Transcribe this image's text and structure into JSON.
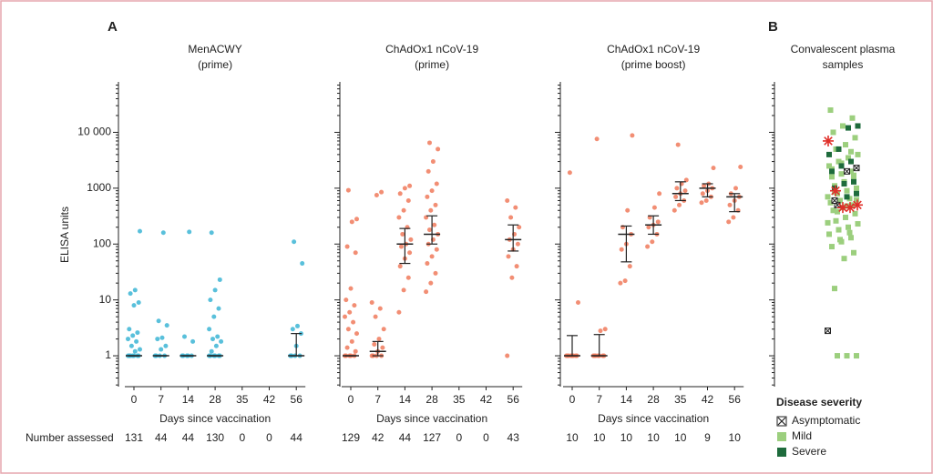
{
  "panel_labels": [
    "A",
    "B"
  ],
  "number_assessed_label": "Number assessed",
  "chart_data": [
    {
      "type": "strip",
      "title": "MenACWY",
      "subtitle": "(prime)",
      "ylabel": "ELISA units",
      "xlabel": "Days since vaccination",
      "log_scale": true,
      "ylim": [
        0.28,
        80000
      ],
      "show_tick_labels": true,
      "color": "#3cb5d5",
      "yticks": [
        1,
        10,
        100,
        1000,
        {
          "value": 10000,
          "label": "10 000"
        }
      ],
      "minor_yticks": [
        0.3,
        0.4,
        0.5,
        0.6,
        0.7,
        0.8,
        0.9,
        2,
        3,
        4,
        5,
        6,
        7,
        8,
        9,
        20,
        30,
        40,
        50,
        60,
        70,
        80,
        90,
        200,
        300,
        400,
        500,
        600,
        700,
        800,
        900,
        2000,
        3000,
        4000,
        5000,
        6000,
        7000,
        8000,
        9000,
        20000,
        30000,
        40000,
        50000,
        60000,
        70000
      ],
      "categories": [
        "0",
        "7",
        "14",
        "28",
        "35",
        "42",
        "56"
      ],
      "n": [
        131,
        44,
        44,
        130,
        0,
        0,
        44
      ],
      "points": [
        [
          1,
          1,
          1,
          1,
          1,
          1,
          1,
          1.2,
          1.3,
          1.5,
          1.8,
          2,
          2.3,
          2.6,
          3,
          8,
          9,
          13,
          15,
          170
        ],
        [
          1,
          1,
          1,
          1,
          1.3,
          1.5,
          2,
          2.1,
          3.5,
          4.2,
          160
        ],
        [
          1,
          1,
          1,
          1,
          1,
          1.8,
          2.2,
          165
        ],
        [
          1,
          1,
          1,
          1,
          1,
          1,
          1.2,
          1.5,
          1.8,
          2,
          2.2,
          3,
          5,
          7,
          10,
          15,
          23,
          160
        ],
        [],
        [],
        [
          1,
          1,
          1,
          1,
          1.5,
          2.5,
          3,
          3.4,
          45,
          110
        ]
      ],
      "medians": [
        1,
        1,
        1,
        1,
        null,
        null,
        1
      ],
      "q1": [
        1,
        1,
        1,
        1,
        null,
        null,
        1
      ],
      "q3": [
        1,
        1,
        1,
        1,
        null,
        null,
        2.5
      ]
    },
    {
      "type": "strip",
      "title": "ChAdOx1 nCoV-19",
      "subtitle": "(prime)",
      "xlabel": "Days since vaccination",
      "log_scale": true,
      "ylim": [
        0.28,
        80000
      ],
      "show_tick_labels": false,
      "color": "#f07a5c",
      "yticks": [
        1,
        10,
        100,
        1000,
        10000
      ],
      "minor_yticks": [
        0.3,
        0.4,
        0.5,
        0.6,
        0.7,
        0.8,
        0.9,
        2,
        3,
        4,
        5,
        6,
        7,
        8,
        9,
        20,
        30,
        40,
        50,
        60,
        70,
        80,
        90,
        200,
        300,
        400,
        500,
        600,
        700,
        800,
        900,
        2000,
        3000,
        4000,
        5000,
        6000,
        7000,
        8000,
        9000,
        20000,
        30000,
        40000,
        50000,
        60000,
        70000
      ],
      "categories": [
        "0",
        "7",
        "14",
        "28",
        "35",
        "42",
        "56"
      ],
      "n": [
        129,
        42,
        44,
        127,
        0,
        0,
        43
      ],
      "points": [
        [
          1,
          1,
          1,
          1,
          1,
          1.2,
          1.4,
          1.8,
          2.5,
          3,
          4,
          5,
          6,
          8,
          10,
          16,
          70,
          90,
          250,
          280,
          920
        ],
        [
          1,
          1,
          1,
          1,
          1.2,
          1.4,
          1.6,
          2,
          3,
          5,
          7,
          9,
          750,
          850
        ],
        [
          6,
          15,
          25,
          40,
          55,
          70,
          90,
          100,
          120,
          150,
          200,
          300,
          400,
          600,
          800,
          1000,
          1100
        ],
        [
          14,
          20,
          30,
          45,
          60,
          80,
          100,
          120,
          150,
          180,
          220,
          300,
          400,
          500,
          700,
          900,
          1200,
          2000,
          3000,
          5000,
          6500
        ],
        [],
        [],
        [
          1,
          25,
          40,
          60,
          80,
          100,
          120,
          150,
          200,
          300,
          450,
          600
        ]
      ],
      "medians": [
        1,
        1.2,
        100,
        150,
        null,
        null,
        120
      ],
      "q1": [
        1,
        1,
        45,
        100,
        null,
        null,
        75
      ],
      "q3": [
        1,
        1.8,
        190,
        320,
        null,
        null,
        220
      ]
    },
    {
      "type": "strip",
      "title": "ChAdOx1 nCoV-19",
      "subtitle": "(prime boost)",
      "xlabel": "Days since vaccination",
      "log_scale": true,
      "ylim": [
        0.28,
        80000
      ],
      "show_tick_labels": false,
      "color": "#f07a5c",
      "yticks": [
        1,
        10,
        100,
        1000,
        10000
      ],
      "minor_yticks": [
        0.3,
        0.4,
        0.5,
        0.6,
        0.7,
        0.8,
        0.9,
        2,
        3,
        4,
        5,
        6,
        7,
        8,
        9,
        20,
        30,
        40,
        50,
        60,
        70,
        80,
        90,
        200,
        300,
        400,
        500,
        600,
        700,
        800,
        900,
        2000,
        3000,
        4000,
        5000,
        6000,
        7000,
        8000,
        9000,
        20000,
        30000,
        40000,
        50000,
        60000,
        70000
      ],
      "categories": [
        "0",
        "7",
        "14",
        "28",
        "35",
        "42",
        "56"
      ],
      "n": [
        10,
        10,
        10,
        10,
        10,
        9,
        10
      ],
      "points": [
        [
          1,
          1,
          1,
          1,
          1,
          1,
          1,
          1,
          9,
          1900
        ],
        [
          1,
          1,
          1,
          1,
          1,
          1,
          1,
          2.8,
          3,
          7600
        ],
        [
          20,
          22,
          40,
          80,
          100,
          150,
          200,
          400,
          8800
        ],
        [
          90,
          110,
          150,
          200,
          220,
          250,
          300,
          450,
          800
        ],
        [
          400,
          500,
          600,
          700,
          800,
          900,
          1000,
          1200,
          1400,
          6000
        ],
        [
          550,
          600,
          700,
          800,
          900,
          1000,
          1100,
          1200,
          2300
        ],
        [
          250,
          300,
          400,
          500,
          600,
          700,
          800,
          1000,
          2400
        ]
      ],
      "medians": [
        1,
        1,
        150,
        220,
        800,
        1000,
        700
      ],
      "q1": [
        1,
        1,
        48,
        150,
        600,
        700,
        380
      ],
      "q3": [
        2.3,
        2.4,
        210,
        320,
        1300,
        1200,
        800
      ]
    },
    {
      "type": "severity",
      "title": "Convalescent plasma",
      "subtitle": "samples",
      "legend_title": "Disease severity",
      "log_scale": true,
      "ylim": [
        0.28,
        80000
      ],
      "show_tick_labels": false,
      "yticks": [
        1,
        10,
        100,
        1000,
        10000
      ],
      "minor_yticks": [
        0.3,
        0.4,
        0.5,
        0.6,
        0.7,
        0.8,
        0.9,
        2,
        3,
        4,
        5,
        6,
        7,
        8,
        9,
        20,
        30,
        40,
        50,
        60,
        70,
        80,
        90,
        200,
        300,
        400,
        500,
        600,
        700,
        800,
        900,
        2000,
        3000,
        4000,
        5000,
        6000,
        7000,
        8000,
        9000,
        20000,
        30000,
        40000,
        50000,
        60000,
        70000
      ],
      "series": [
        {
          "name": "Asymptomatic",
          "color": "#ffffff",
          "values": [
            2.8,
            500,
            2000,
            2300,
            600
          ]
        },
        {
          "name": "Mild",
          "color": "#9ccf7e",
          "values": [
            1,
            1,
            1,
            16,
            55,
            70,
            90,
            110,
            130,
            150,
            180,
            200,
            230,
            260,
            300,
            350,
            400,
            450,
            500,
            550,
            600,
            650,
            700,
            800,
            900,
            1000,
            1100,
            1200,
            1400,
            1600,
            1800,
            2000,
            2500,
            3000,
            3500,
            4000,
            5000,
            6000,
            8000,
            10000,
            13000,
            18000,
            25000,
            120,
            160,
            240,
            380,
            480,
            620,
            850,
            1300,
            1700,
            2200,
            2800,
            4500
          ]
        },
        {
          "name": "Severe",
          "color": "#1e6b3c",
          "values": [
            700,
            800,
            1000,
            1200,
            1300,
            2000,
            2500,
            3000,
            4000,
            5000,
            12000,
            13000
          ]
        }
      ],
      "starred": [
        7000,
        900,
        450,
        450,
        500
      ],
      "star_color": "#e0302a"
    }
  ]
}
